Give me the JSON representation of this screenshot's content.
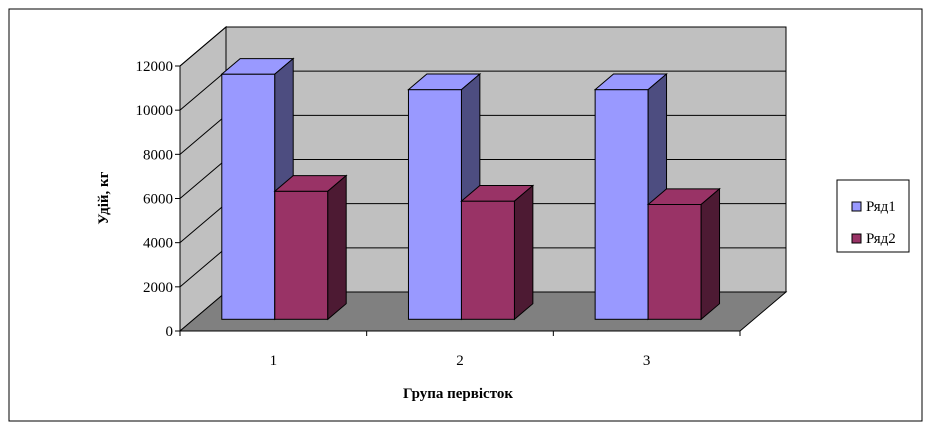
{
  "chart_data": {
    "type": "bar",
    "categories": [
      "1",
      "2",
      "3"
    ],
    "series": [
      {
        "name": "Ряд1",
        "values": [
          11100,
          10400,
          10400
        ],
        "color": "#9999ff"
      },
      {
        "name": "Ряд2",
        "values": [
          5800,
          5350,
          5200
        ],
        "color": "#993366"
      }
    ],
    "title": "",
    "xlabel": "Група первісток",
    "ylabel": "Удій, кг",
    "ylim": [
      0,
      12000
    ],
    "yticks": [
      0,
      2000,
      4000,
      6000,
      8000,
      10000,
      12000
    ],
    "grid": true,
    "legend": "right",
    "three_d": true,
    "colors": {
      "back_wall": "#c0c0c0",
      "side_wall": "#c0c0c0",
      "floor": "#808080",
      "series1_side": "#4d4d80",
      "series2_side": "#4d1a33"
    }
  }
}
